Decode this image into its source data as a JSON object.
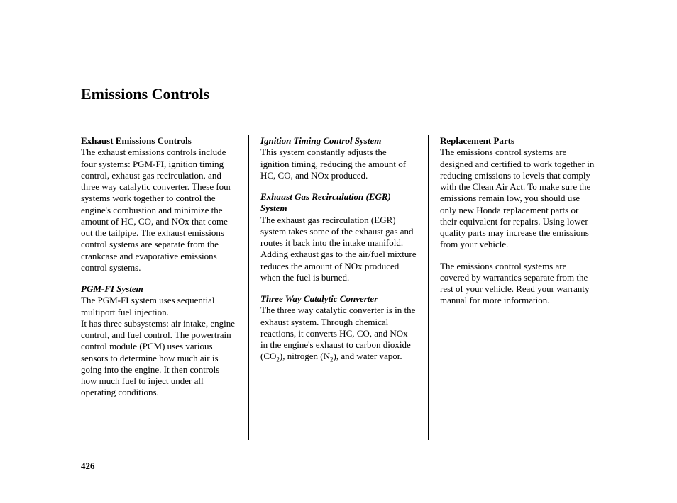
{
  "page": {
    "title": "Emissions Controls",
    "number": "426"
  },
  "col1": {
    "h1": "Exhaust Emissions Controls",
    "p1": "The exhaust emissions controls include four systems: PGM-FI, ignition timing control, exhaust gas recirculation, and three way catalytic converter. These four systems work together to control the engine's combustion and minimize the amount of HC, CO, and NOx that come out the tailpipe. The exhaust emissions control systems are separate from the crankcase and evaporative emissions control systems.",
    "h2": "PGM-FI System",
    "p2a": "The PGM-FI system uses sequential multiport fuel injection.",
    "p2b": "It has three subsystems: air intake, engine control, and fuel control. The powertrain control module (PCM) uses various sensors to determine how much air is going into the engine. It then controls how much fuel to inject under all operating conditions."
  },
  "col2": {
    "h1": "Ignition Timing Control System",
    "p1": "This system constantly adjusts the ignition timing, reducing the amount of HC, CO, and NOx produced.",
    "h2": "Exhaust Gas Recirculation (EGR) System",
    "p2": "The exhaust gas recirculation (EGR) system takes some of the exhaust gas and routes it back into the intake manifold. Adding exhaust gas to the air/fuel mixture reduces the amount of NOx produced when the fuel is burned.",
    "h3": "Three Way Catalytic Converter",
    "p3a": "The three way catalytic converter is in the exhaust system. Through chemical reactions, it converts HC, CO, and NOx in the engine's exhaust to carbon dioxide (CO",
    "p3b": "), nitrogen (N",
    "p3c": "), and water vapor."
  },
  "col3": {
    "h1": "Replacement Parts",
    "p1": "The emissions control systems are designed and certified to work together in reducing emissions to levels that comply with the Clean Air Act. To make sure the emissions remain low, you should use only new Honda replacement parts or their equivalent for repairs. Using lower quality parts may increase the emissions from your vehicle.",
    "p2": "The emissions control systems are covered by warranties separate from the rest of your vehicle. Read your warranty manual for more information."
  }
}
